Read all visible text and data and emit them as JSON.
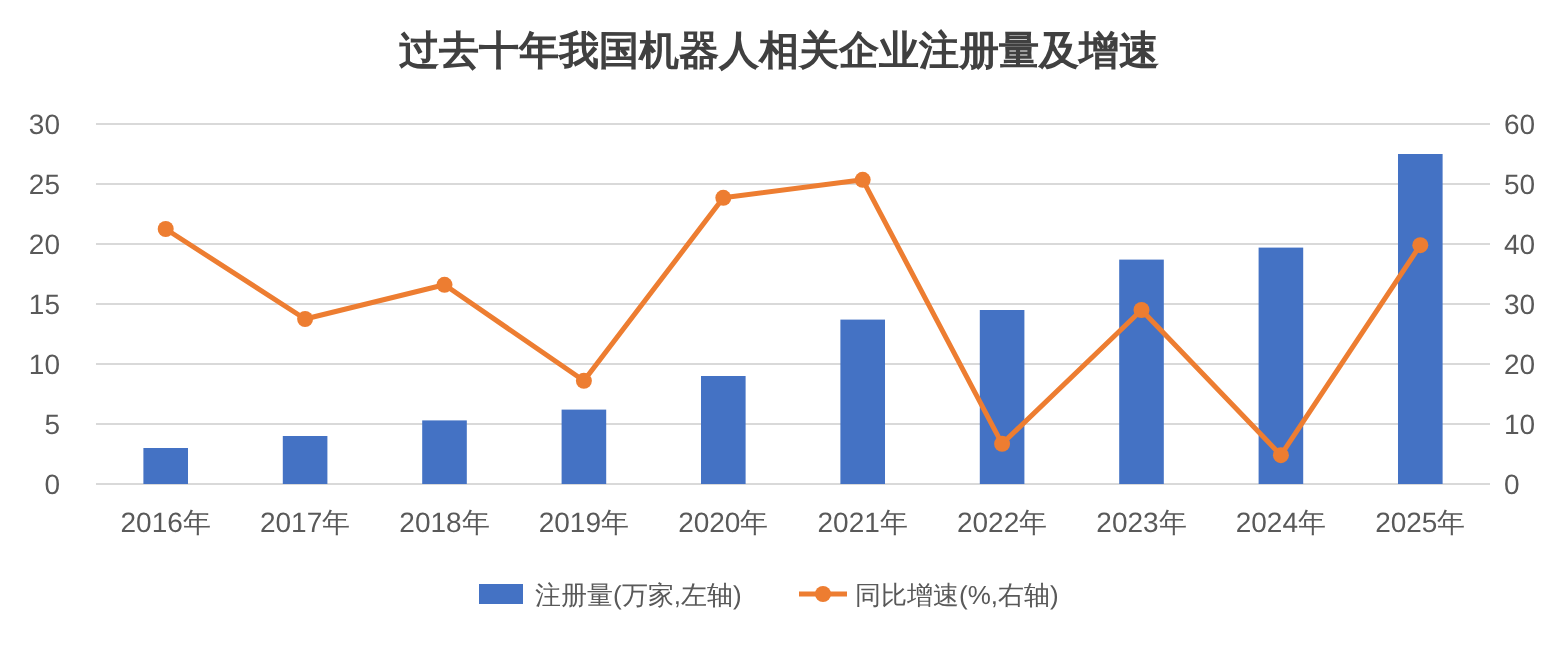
{
  "chart_data": {
    "type": "bar",
    "title": "过去十年我国机器人相关企业注册量及增速",
    "categories": [
      "2016年",
      "2017年",
      "2018年",
      "2019年",
      "2020年",
      "2021年",
      "2022年",
      "2023年",
      "2024年",
      "2025年"
    ],
    "series": [
      {
        "name": "注册量(万家,左轴)",
        "color": "#4472c4",
        "values": [
          3.0,
          4.0,
          5.3,
          6.2,
          9.0,
          13.7,
          14.5,
          18.7,
          19.7,
          27.5
        ]
      },
      {
        "name": "同比增速(%,右轴)",
        "type": "line",
        "axis": "y2",
        "color": "#ed7d31",
        "marker": "circle",
        "values": [
          42.5,
          27.5,
          33.2,
          17.2,
          47.7,
          50.7,
          6.7,
          29.0,
          4.8,
          39.8
        ]
      }
    ],
    "ylim": [
      0,
      30
    ],
    "yticks": [
      0,
      5,
      10,
      15,
      20,
      25,
      30
    ],
    "y2lim": [
      0,
      60
    ],
    "y2ticks": [
      0,
      10,
      20,
      30,
      40,
      50,
      60
    ],
    "grid": "y",
    "legend": "bottom"
  }
}
